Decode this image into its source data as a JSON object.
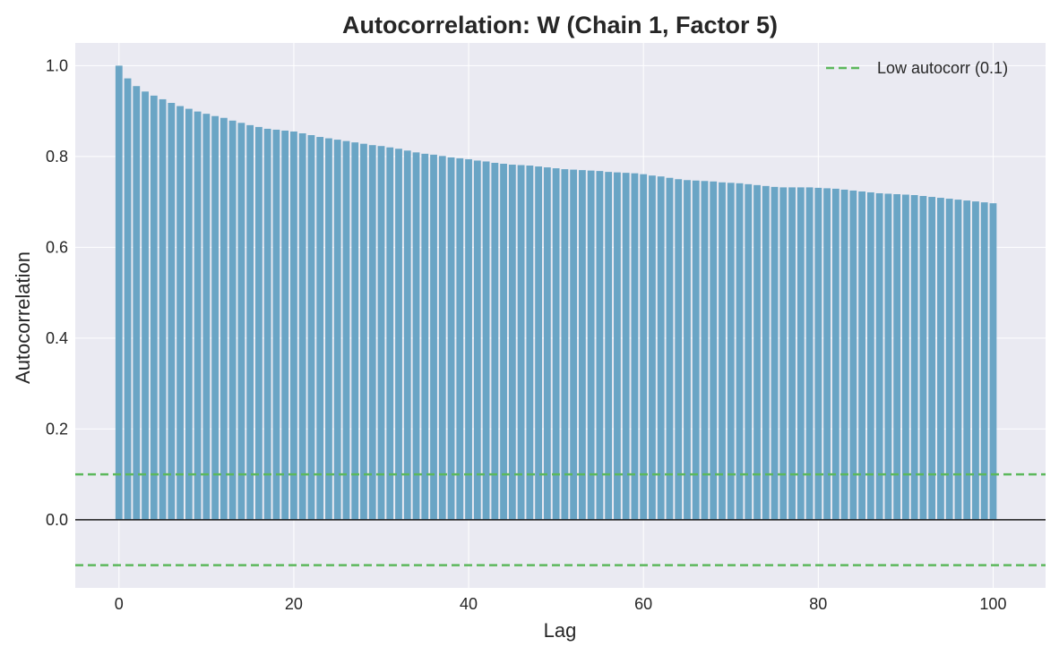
{
  "chart_data": {
    "type": "bar",
    "title": "Autocorrelation: W (Chain 1, Factor 5)",
    "xlabel": "Lag",
    "ylabel": "Autocorrelation",
    "xlim": [
      -5,
      106
    ],
    "ylim": [
      -0.15,
      1.05
    ],
    "x_ticks": [
      0,
      20,
      40,
      60,
      80,
      100
    ],
    "x_tick_labels": [
      "0",
      "20",
      "40",
      "60",
      "80",
      "100"
    ],
    "y_ticks": [
      0.0,
      0.2,
      0.4,
      0.6,
      0.8,
      1.0
    ],
    "y_tick_labels": [
      "0.0",
      "0.2",
      "0.4",
      "0.6",
      "0.8",
      "1.0"
    ],
    "grid": true,
    "legend_position": "top-right",
    "bar_color": "#6aa5c5",
    "x": [
      0,
      1,
      2,
      3,
      4,
      5,
      6,
      7,
      8,
      9,
      10,
      11,
      12,
      13,
      14,
      15,
      16,
      17,
      18,
      19,
      20,
      21,
      22,
      23,
      24,
      25,
      26,
      27,
      28,
      29,
      30,
      31,
      32,
      33,
      34,
      35,
      36,
      37,
      38,
      39,
      40,
      41,
      42,
      43,
      44,
      45,
      46,
      47,
      48,
      49,
      50,
      51,
      52,
      53,
      54,
      55,
      56,
      57,
      58,
      59,
      60,
      61,
      62,
      63,
      64,
      65,
      66,
      67,
      68,
      69,
      70,
      71,
      72,
      73,
      74,
      75,
      76,
      77,
      78,
      79,
      80,
      81,
      82,
      83,
      84,
      85,
      86,
      87,
      88,
      89,
      90,
      91,
      92,
      93,
      94,
      95,
      96,
      97,
      98,
      99,
      100
    ],
    "values": [
      1.0,
      0.972,
      0.955,
      0.943,
      0.934,
      0.926,
      0.918,
      0.911,
      0.905,
      0.899,
      0.894,
      0.889,
      0.885,
      0.879,
      0.874,
      0.869,
      0.865,
      0.861,
      0.859,
      0.857,
      0.855,
      0.851,
      0.847,
      0.843,
      0.84,
      0.837,
      0.834,
      0.831,
      0.828,
      0.825,
      0.823,
      0.82,
      0.817,
      0.813,
      0.809,
      0.806,
      0.804,
      0.801,
      0.798,
      0.796,
      0.794,
      0.791,
      0.789,
      0.786,
      0.784,
      0.782,
      0.781,
      0.78,
      0.778,
      0.776,
      0.774,
      0.772,
      0.771,
      0.77,
      0.769,
      0.768,
      0.766,
      0.765,
      0.764,
      0.763,
      0.761,
      0.758,
      0.756,
      0.753,
      0.75,
      0.748,
      0.747,
      0.746,
      0.745,
      0.743,
      0.742,
      0.741,
      0.739,
      0.737,
      0.735,
      0.733,
      0.732,
      0.732,
      0.732,
      0.732,
      0.731,
      0.73,
      0.729,
      0.727,
      0.725,
      0.723,
      0.721,
      0.719,
      0.718,
      0.717,
      0.716,
      0.715,
      0.713,
      0.711,
      0.709,
      0.707,
      0.705,
      0.703,
      0.701,
      0.699,
      0.697
    ],
    "reference_lines": [
      {
        "name": "Low autocorr (0.1)",
        "values": [
          0.1,
          -0.1
        ],
        "color": "#5cb85c",
        "style": "dashed"
      },
      {
        "values": [
          0.0
        ],
        "color": "#1a1a1a",
        "style": "solid"
      }
    ]
  }
}
